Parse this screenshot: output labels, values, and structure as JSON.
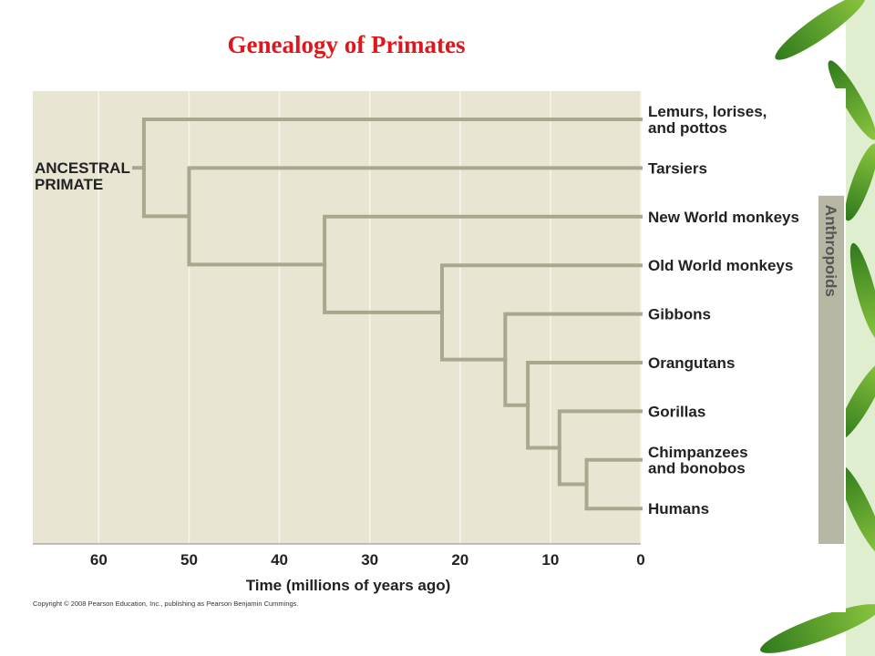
{
  "title": "Genealogy of Primates",
  "root_label": "ANCESTRAL\nPRIMATE",
  "taxa": [
    "Lemurs, lorises,\nand pottos",
    "Tarsiers",
    "New World monkeys",
    "Old World monkeys",
    "Gibbons",
    "Orangutans",
    "Gorillas",
    "Chimpanzees\nand bonobos",
    "Humans"
  ],
  "splits": [
    {
      "time": 55
    },
    {
      "time": 50
    },
    {
      "time": 35
    },
    {
      "time": 22
    },
    {
      "time": 15
    },
    {
      "time": 12.5
    },
    {
      "time": 9
    },
    {
      "time": 6
    }
  ],
  "bracket": {
    "label": "Anthropoids",
    "from_taxon": 2,
    "to_taxon": 8
  },
  "axis": {
    "label": "Time (millions of years ago)",
    "xlim": [
      67.3,
      0
    ],
    "xticks": [
      60,
      50,
      40,
      30,
      20,
      10,
      0
    ]
  },
  "copyright": "Copyright © 2008 Pearson Education, Inc., publishing as Pearson Benjamin Cummings."
}
